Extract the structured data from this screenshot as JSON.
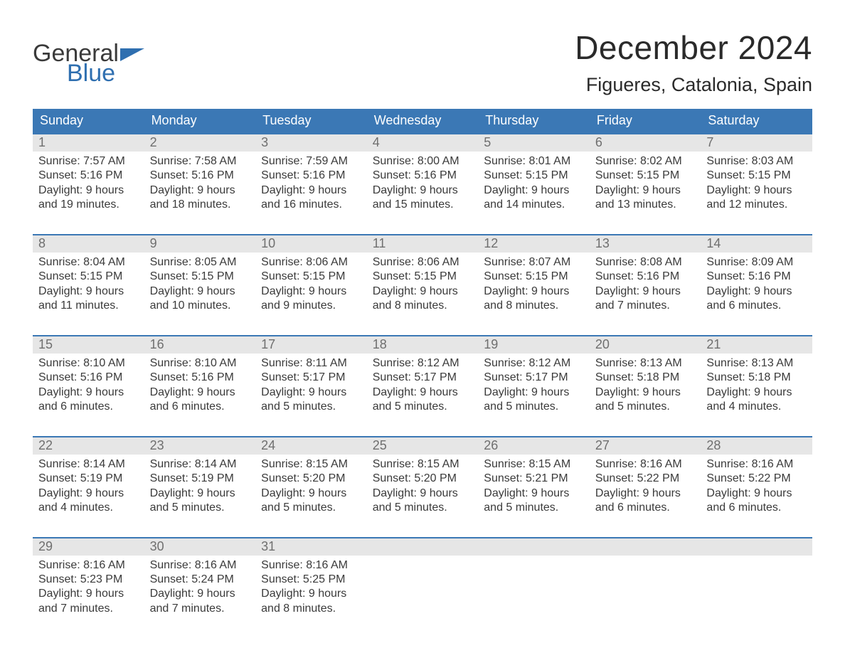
{
  "logo": {
    "word1": "General",
    "word2": "Blue"
  },
  "title": "December 2024",
  "location": "Figueres, Catalonia, Spain",
  "colors": {
    "header_bg": "#3b78b5",
    "header_text": "#ffffff",
    "band_bg": "#e6e6e6",
    "daynum_text": "#6f6f6f",
    "body_text": "#3a3a3a",
    "rule": "#3b78b5",
    "logo_blue": "#2f6fb0",
    "page_bg": "#ffffff"
  },
  "typography": {
    "title_fontsize": 46,
    "location_fontsize": 27,
    "dayhead_fontsize": 18,
    "daynum_fontsize": 18,
    "body_fontsize": 16,
    "logo_fontsize": 34
  },
  "layout": {
    "columns": 7,
    "weeks": 5
  },
  "day_headers": [
    "Sunday",
    "Monday",
    "Tuesday",
    "Wednesday",
    "Thursday",
    "Friday",
    "Saturday"
  ],
  "labels": {
    "sunrise": "Sunrise:",
    "sunset": "Sunset:",
    "daylight": "Daylight:"
  },
  "weeks": [
    [
      {
        "n": "1",
        "sunrise": "7:57 AM",
        "sunset": "5:16 PM",
        "dl1": "9 hours",
        "dl2": "and 19 minutes."
      },
      {
        "n": "2",
        "sunrise": "7:58 AM",
        "sunset": "5:16 PM",
        "dl1": "9 hours",
        "dl2": "and 18 minutes."
      },
      {
        "n": "3",
        "sunrise": "7:59 AM",
        "sunset": "5:16 PM",
        "dl1": "9 hours",
        "dl2": "and 16 minutes."
      },
      {
        "n": "4",
        "sunrise": "8:00 AM",
        "sunset": "5:16 PM",
        "dl1": "9 hours",
        "dl2": "and 15 minutes."
      },
      {
        "n": "5",
        "sunrise": "8:01 AM",
        "sunset": "5:15 PM",
        "dl1": "9 hours",
        "dl2": "and 14 minutes."
      },
      {
        "n": "6",
        "sunrise": "8:02 AM",
        "sunset": "5:15 PM",
        "dl1": "9 hours",
        "dl2": "and 13 minutes."
      },
      {
        "n": "7",
        "sunrise": "8:03 AM",
        "sunset": "5:15 PM",
        "dl1": "9 hours",
        "dl2": "and 12 minutes."
      }
    ],
    [
      {
        "n": "8",
        "sunrise": "8:04 AM",
        "sunset": "5:15 PM",
        "dl1": "9 hours",
        "dl2": "and 11 minutes."
      },
      {
        "n": "9",
        "sunrise": "8:05 AM",
        "sunset": "5:15 PM",
        "dl1": "9 hours",
        "dl2": "and 10 minutes."
      },
      {
        "n": "10",
        "sunrise": "8:06 AM",
        "sunset": "5:15 PM",
        "dl1": "9 hours",
        "dl2": "and 9 minutes."
      },
      {
        "n": "11",
        "sunrise": "8:06 AM",
        "sunset": "5:15 PM",
        "dl1": "9 hours",
        "dl2": "and 8 minutes."
      },
      {
        "n": "12",
        "sunrise": "8:07 AM",
        "sunset": "5:15 PM",
        "dl1": "9 hours",
        "dl2": "and 8 minutes."
      },
      {
        "n": "13",
        "sunrise": "8:08 AM",
        "sunset": "5:16 PM",
        "dl1": "9 hours",
        "dl2": "and 7 minutes."
      },
      {
        "n": "14",
        "sunrise": "8:09 AM",
        "sunset": "5:16 PM",
        "dl1": "9 hours",
        "dl2": "and 6 minutes."
      }
    ],
    [
      {
        "n": "15",
        "sunrise": "8:10 AM",
        "sunset": "5:16 PM",
        "dl1": "9 hours",
        "dl2": "and 6 minutes."
      },
      {
        "n": "16",
        "sunrise": "8:10 AM",
        "sunset": "5:16 PM",
        "dl1": "9 hours",
        "dl2": "and 6 minutes."
      },
      {
        "n": "17",
        "sunrise": "8:11 AM",
        "sunset": "5:17 PM",
        "dl1": "9 hours",
        "dl2": "and 5 minutes."
      },
      {
        "n": "18",
        "sunrise": "8:12 AM",
        "sunset": "5:17 PM",
        "dl1": "9 hours",
        "dl2": "and 5 minutes."
      },
      {
        "n": "19",
        "sunrise": "8:12 AM",
        "sunset": "5:17 PM",
        "dl1": "9 hours",
        "dl2": "and 5 minutes."
      },
      {
        "n": "20",
        "sunrise": "8:13 AM",
        "sunset": "5:18 PM",
        "dl1": "9 hours",
        "dl2": "and 5 minutes."
      },
      {
        "n": "21",
        "sunrise": "8:13 AM",
        "sunset": "5:18 PM",
        "dl1": "9 hours",
        "dl2": "and 4 minutes."
      }
    ],
    [
      {
        "n": "22",
        "sunrise": "8:14 AM",
        "sunset": "5:19 PM",
        "dl1": "9 hours",
        "dl2": "and 4 minutes."
      },
      {
        "n": "23",
        "sunrise": "8:14 AM",
        "sunset": "5:19 PM",
        "dl1": "9 hours",
        "dl2": "and 5 minutes."
      },
      {
        "n": "24",
        "sunrise": "8:15 AM",
        "sunset": "5:20 PM",
        "dl1": "9 hours",
        "dl2": "and 5 minutes."
      },
      {
        "n": "25",
        "sunrise": "8:15 AM",
        "sunset": "5:20 PM",
        "dl1": "9 hours",
        "dl2": "and 5 minutes."
      },
      {
        "n": "26",
        "sunrise": "8:15 AM",
        "sunset": "5:21 PM",
        "dl1": "9 hours",
        "dl2": "and 5 minutes."
      },
      {
        "n": "27",
        "sunrise": "8:16 AM",
        "sunset": "5:22 PM",
        "dl1": "9 hours",
        "dl2": "and 6 minutes."
      },
      {
        "n": "28",
        "sunrise": "8:16 AM",
        "sunset": "5:22 PM",
        "dl1": "9 hours",
        "dl2": "and 6 minutes."
      }
    ],
    [
      {
        "n": "29",
        "sunrise": "8:16 AM",
        "sunset": "5:23 PM",
        "dl1": "9 hours",
        "dl2": "and 7 minutes."
      },
      {
        "n": "30",
        "sunrise": "8:16 AM",
        "sunset": "5:24 PM",
        "dl1": "9 hours",
        "dl2": "and 7 minutes."
      },
      {
        "n": "31",
        "sunrise": "8:16 AM",
        "sunset": "5:25 PM",
        "dl1": "9 hours",
        "dl2": "and 8 minutes."
      },
      null,
      null,
      null,
      null
    ]
  ]
}
